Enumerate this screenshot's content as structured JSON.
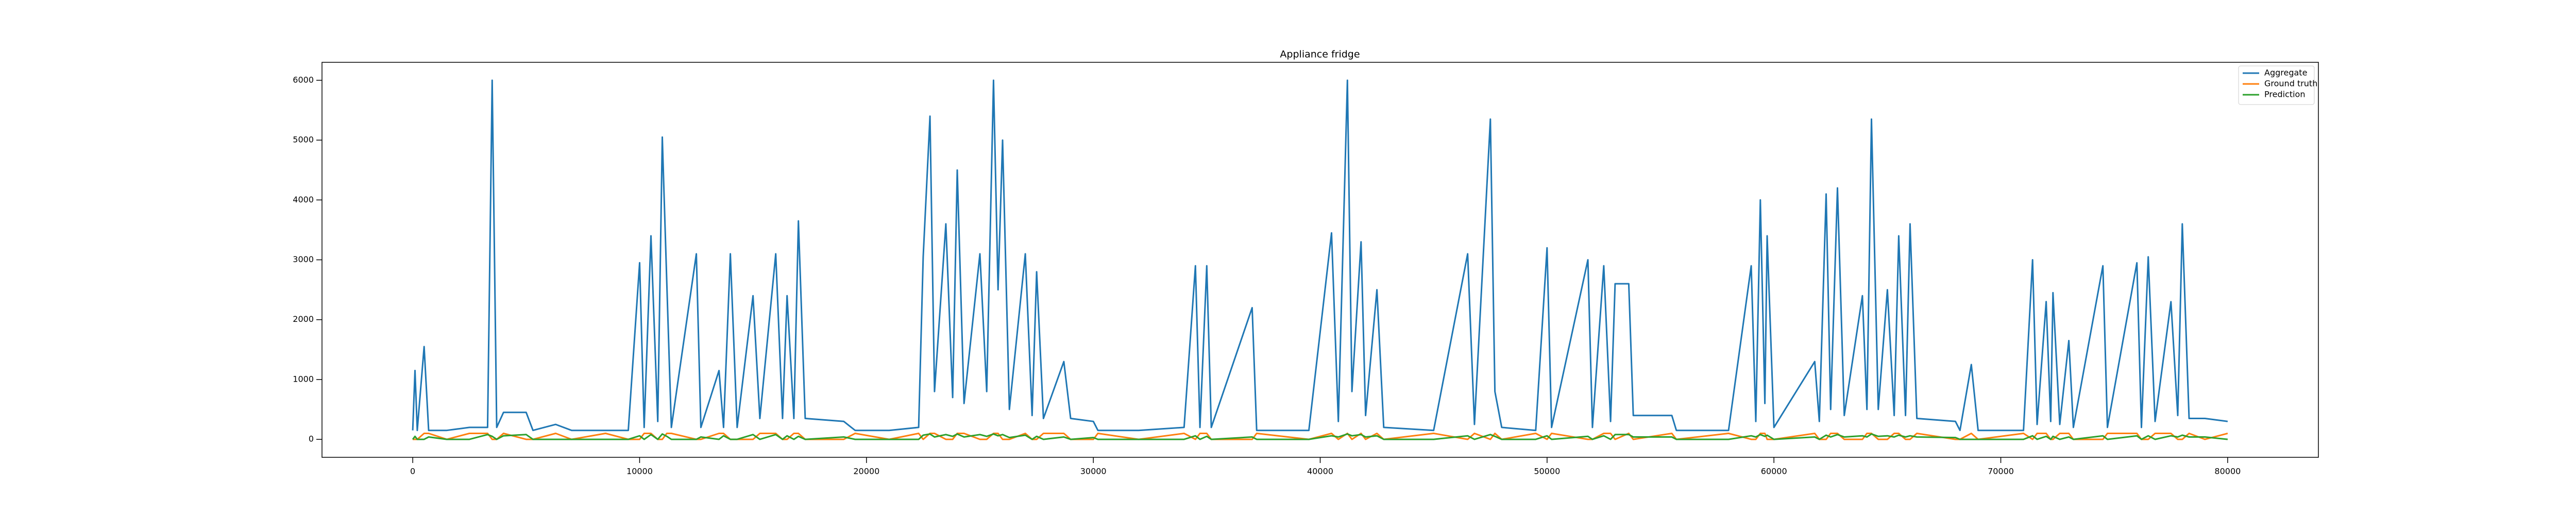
{
  "chart_data": {
    "type": "line",
    "title": "Appliance fridge",
    "x": [
      0,
      100,
      200,
      500,
      700,
      1500,
      2500,
      3300,
      3500,
      3700,
      4000,
      5000,
      5300,
      6300,
      7000,
      8500,
      9500,
      10000,
      10200,
      10500,
      10800,
      11000,
      11200,
      11400,
      12500,
      12700,
      13500,
      13700,
      14000,
      14300,
      15000,
      15300,
      16000,
      16300,
      16500,
      16800,
      17000,
      17300,
      19000,
      19500,
      21000,
      22300,
      22500,
      22800,
      23000,
      23500,
      23800,
      24000,
      24300,
      25000,
      25300,
      25600,
      25800,
      26000,
      26300,
      27000,
      27300,
      27500,
      27800,
      28700,
      29000,
      30000,
      30200,
      32000,
      34000,
      34500,
      34700,
      35000,
      35200,
      37000,
      37200,
      39500,
      40500,
      40800,
      41200,
      41400,
      41800,
      42000,
      42500,
      42800,
      45000,
      46500,
      46800,
      47500,
      47700,
      48000,
      49500,
      50000,
      50200,
      51800,
      52000,
      52500,
      52800,
      53000,
      53600,
      53800,
      55500,
      55700,
      58000,
      59000,
      59200,
      59400,
      59600,
      59700,
      60000,
      61800,
      62000,
      62300,
      62500,
      62800,
      63100,
      63900,
      64100,
      64300,
      64600,
      65000,
      65300,
      65500,
      65800,
      66000,
      66300,
      68000,
      68200,
      68700,
      69000,
      71000,
      71400,
      71600,
      72000,
      72200,
      72300,
      72600,
      73000,
      73200,
      74500,
      74700,
      76000,
      76200,
      76500,
      76800,
      77500,
      77800,
      78000,
      78300,
      79000,
      80000
    ],
    "series": [
      {
        "name": "Aggregate",
        "color": "#1f77b4",
        "values": [
          150,
          1150,
          150,
          1550,
          150,
          150,
          200,
          200,
          6000,
          200,
          450,
          450,
          150,
          250,
          150,
          150,
          150,
          2950,
          200,
          3400,
          300,
          5050,
          2600,
          200,
          3100,
          200,
          1150,
          200,
          3100,
          200,
          2400,
          350,
          3100,
          350,
          2400,
          350,
          3650,
          350,
          300,
          150,
          150,
          200,
          3050,
          5400,
          800,
          3600,
          700,
          4500,
          600,
          3100,
          800,
          6000,
          2500,
          5000,
          500,
          3100,
          400,
          2800,
          350,
          1300,
          350,
          300,
          150,
          150,
          200,
          2900,
          200,
          2900,
          200,
          2200,
          150,
          150,
          3450,
          300,
          6000,
          800,
          3300,
          400,
          2500,
          200,
          150,
          3100,
          250,
          5350,
          800,
          200,
          150,
          3200,
          200,
          3000,
          200,
          2900,
          300,
          2600,
          2600,
          400,
          400,
          150,
          150,
          2900,
          300,
          4000,
          600,
          3400,
          200,
          1300,
          300,
          4100,
          500,
          4200,
          400,
          2400,
          500,
          5350,
          500,
          2500,
          400,
          3400,
          400,
          3600,
          350,
          300,
          150,
          1250,
          150,
          150,
          3000,
          250,
          2300,
          300,
          2450,
          250,
          1650,
          200,
          2900,
          200,
          2950,
          200,
          3050,
          300,
          2300,
          400,
          3600,
          350,
          350,
          300
        ]
      },
      {
        "name": "Ground truth",
        "color": "#ff7f0e",
        "values": [
          0,
          0,
          0,
          100,
          100,
          0,
          100,
          100,
          0,
          0,
          100,
          0,
          0,
          100,
          0,
          100,
          0,
          0,
          100,
          100,
          0,
          0,
          100,
          100,
          0,
          0,
          100,
          100,
          0,
          0,
          0,
          100,
          100,
          0,
          0,
          100,
          100,
          0,
          0,
          100,
          0,
          100,
          0,
          100,
          100,
          0,
          0,
          100,
          100,
          0,
          0,
          100,
          100,
          0,
          0,
          100,
          0,
          0,
          100,
          100,
          0,
          0,
          100,
          0,
          100,
          0,
          100,
          100,
          0,
          0,
          100,
          0,
          100,
          0,
          100,
          0,
          100,
          0,
          100,
          0,
          100,
          0,
          100,
          0,
          100,
          0,
          100,
          0,
          100,
          0,
          0,
          100,
          100,
          0,
          100,
          0,
          100,
          0,
          100,
          0,
          0,
          100,
          100,
          0,
          0,
          100,
          0,
          0,
          100,
          100,
          0,
          0,
          100,
          100,
          0,
          0,
          100,
          100,
          0,
          0,
          100,
          0,
          0,
          100,
          0,
          100,
          0,
          100,
          100,
          0,
          0,
          100,
          100,
          0,
          0,
          100,
          100,
          0,
          0,
          100,
          100,
          0,
          0,
          100,
          0,
          100
        ]
      },
      {
        "name": "Prediction",
        "color": "#2ca02c",
        "values": [
          0,
          50,
          0,
          0,
          40,
          0,
          0,
          80,
          50,
          0,
          60,
          80,
          0,
          0,
          0,
          0,
          0,
          60,
          0,
          80,
          0,
          90,
          50,
          0,
          0,
          40,
          0,
          60,
          0,
          0,
          80,
          0,
          80,
          0,
          60,
          0,
          50,
          0,
          40,
          0,
          0,
          0,
          70,
          90,
          40,
          80,
          50,
          90,
          40,
          80,
          50,
          90,
          60,
          80,
          30,
          70,
          0,
          50,
          0,
          40,
          0,
          30,
          0,
          0,
          0,
          60,
          0,
          50,
          0,
          40,
          0,
          0,
          60,
          40,
          90,
          60,
          80,
          40,
          60,
          0,
          0,
          60,
          0,
          80,
          50,
          0,
          0,
          60,
          0,
          50,
          0,
          60,
          0,
          80,
          80,
          40,
          40,
          0,
          0,
          60,
          40,
          80,
          50,
          70,
          0,
          40,
          0,
          70,
          40,
          80,
          40,
          60,
          40,
          90,
          50,
          60,
          40,
          70,
          40,
          60,
          40,
          30,
          0,
          0,
          0,
          0,
          60,
          0,
          50,
          0,
          50,
          0,
          40,
          0,
          60,
          0,
          60,
          0,
          60,
          0,
          60,
          40,
          70,
          40,
          40,
          0
        ]
      }
    ],
    "xlim": [
      -4000,
      84000
    ],
    "ylim": [
      -300,
      6300
    ],
    "xticks": [
      0,
      10000,
      20000,
      30000,
      40000,
      50000,
      60000,
      70000,
      80000
    ],
    "yticks": [
      0,
      1000,
      2000,
      3000,
      4000,
      5000,
      6000
    ],
    "legend": "upper right"
  }
}
